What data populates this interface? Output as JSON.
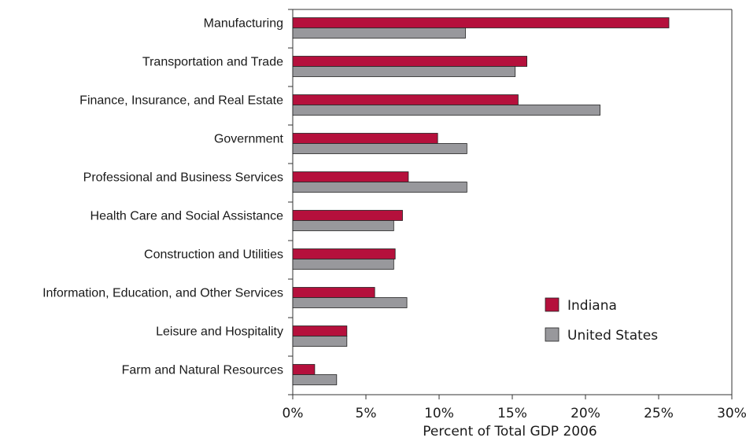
{
  "chart_data": {
    "type": "bar",
    "orientation": "horizontal",
    "categories": [
      "Manufacturing",
      "Transportation and Trade",
      "Finance, Insurance, and Real Estate",
      "Government",
      "Professional and Business Services",
      "Health Care and Social Assistance",
      "Construction and Utilities",
      "Information, Education, and Other Services",
      "Leisure and Hospitality",
      "Farm and Natural Resources"
    ],
    "series": [
      {
        "name": "Indiana",
        "color": "#b5103c",
        "values": [
          25.7,
          16.0,
          15.4,
          9.9,
          7.9,
          7.5,
          7.0,
          5.6,
          3.7,
          1.5
        ]
      },
      {
        "name": "United States",
        "color": "#98989c",
        "values": [
          11.8,
          15.2,
          21.0,
          11.9,
          11.9,
          6.9,
          6.9,
          7.8,
          3.7,
          3.0
        ]
      }
    ],
    "xlabel": "Percent of Total GDP 2006",
    "ylabel": "",
    "title": "",
    "xlim": [
      0,
      30
    ],
    "xticks": [
      0,
      5,
      10,
      15,
      20,
      25,
      30
    ],
    "tick_suffix": "%",
    "grid": false,
    "legend_position": "lower-right"
  }
}
